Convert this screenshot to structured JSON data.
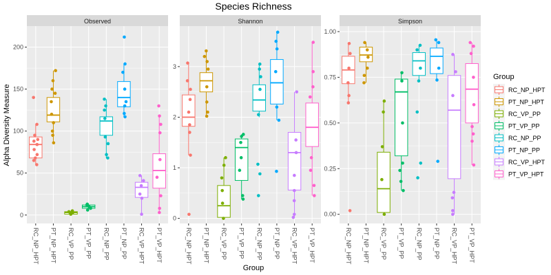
{
  "chart_data": {
    "type": "boxplot",
    "title": "Species Richness",
    "xlabel": "Group",
    "ylabel": "Alpha Diversity Measure",
    "legend": {
      "title": "Group",
      "placement": "right",
      "entries": [
        {
          "name": "RC_NP_HPT",
          "color": "#F8766D"
        },
        {
          "name": "PT_NP_HPT",
          "color": "#CD9600"
        },
        {
          "name": "RC_VP_PP",
          "color": "#7CAE00"
        },
        {
          "name": "PT_VP_PP",
          "color": "#00BE67"
        },
        {
          "name": "RC_NP_PP",
          "color": "#00BFC4"
        },
        {
          "name": "PT_NP_PP",
          "color": "#00A9FF"
        },
        {
          "name": "RC_VP_HPT",
          "color": "#C77CFF"
        },
        {
          "name": "PT_VP_HPT",
          "color": "#FF61CC"
        }
      ]
    },
    "categories": [
      "RC_NP_HPT",
      "PT_NP_HPT",
      "RC_VP_PP",
      "PT_VP_PP",
      "RC_NP_PP",
      "PT_NP_PP",
      "RC_VP_HPT",
      "PT_VP_HPT"
    ],
    "grid": true,
    "panels": [
      {
        "name": "Observed",
        "ylim": [
          -10,
          225
        ],
        "yticks": [
          0,
          50,
          100,
          150,
          200
        ],
        "boxes": [
          {
            "q1": 68,
            "median": 84,
            "q3": 93,
            "min": 60,
            "max": 108,
            "points": [
              60,
              65,
              68,
              72,
              78,
              84,
              88,
              90,
              95,
              108,
              140
            ]
          },
          {
            "q1": 111,
            "median": 119,
            "q3": 140,
            "min": 86,
            "max": 172,
            "points": [
              86,
              95,
              100,
              110,
              120,
              135,
              145,
              150,
              160,
              172
            ]
          },
          {
            "q1": 1,
            "median": 3,
            "q3": 4,
            "min": 1,
            "max": 5,
            "points": [
              1,
              2,
              3,
              4,
              5
            ]
          },
          {
            "q1": 8,
            "median": 10,
            "q3": 12,
            "min": 6,
            "max": 13,
            "points": [
              6,
              8,
              10,
              12,
              13
            ]
          },
          {
            "q1": 95,
            "median": 112,
            "q3": 117,
            "min": 68,
            "max": 138,
            "points": [
              68,
              72,
              85,
              93,
              115,
              125,
              130,
              138
            ]
          },
          {
            "q1": 129,
            "median": 140,
            "q3": 159,
            "min": 117,
            "max": 180,
            "points": [
              117,
              121,
              130,
              135,
              150,
              170,
              180,
              212
            ]
          },
          {
            "q1": 21,
            "median": 33,
            "q3": 39,
            "min": 1,
            "max": 47,
            "points": [
              1,
              20,
              25,
              35,
              41,
              47
            ]
          },
          {
            "q1": 32,
            "median": 53,
            "q3": 73,
            "min": 3,
            "max": 118,
            "points": [
              3,
              8,
              23,
              45,
              66,
              98,
              108,
              118,
              130
            ]
          }
        ]
      },
      {
        "name": "Shannon",
        "ylim": [
          -0.1,
          3.8
        ],
        "yticks": [
          0,
          1,
          2,
          3
        ],
        "boxes": [
          {
            "q1": 1.82,
            "median": 2.0,
            "q3": 2.44,
            "min": 1.25,
            "max": 3.07,
            "points": [
              0.08,
              1.25,
              1.7,
              1.85,
              2.1,
              2.35,
              2.55,
              2.72,
              3.07
            ]
          },
          {
            "q1": 2.5,
            "median": 2.72,
            "q3": 2.88,
            "min": 2.02,
            "max": 3.31,
            "points": [
              2.02,
              2.1,
              2.3,
              2.6,
              2.95,
              3.1,
              3.2,
              3.31
            ]
          },
          {
            "q1": 0.02,
            "median": 0.25,
            "q3": 0.65,
            "min": 0.0,
            "max": 1.2,
            "points": [
              0.0,
              0.3,
              0.55,
              0.8,
              1.05,
              1.2
            ]
          },
          {
            "q1": 0.75,
            "median": 1.4,
            "q3": 1.57,
            "min": 0.38,
            "max": 1.66,
            "points": [
              0.38,
              0.45,
              0.95,
              1.2,
              1.5,
              1.62,
              1.66
            ]
          },
          {
            "q1": 2.12,
            "median": 2.34,
            "q3": 2.64,
            "min": 2.0,
            "max": 3.05,
            "points": [
              0.45,
              0.88,
              1.07,
              2.05,
              2.55,
              2.8,
              2.95,
              3.05
            ]
          },
          {
            "q1": 2.26,
            "median": 2.68,
            "q3": 3.14,
            "min": 1.94,
            "max": 3.68,
            "points": [
              0.93,
              1.94,
              2.2,
              2.9,
              3.35,
              3.5,
              3.68
            ]
          },
          {
            "q1": 0.56,
            "median": 1.3,
            "q3": 1.7,
            "min": 0.02,
            "max": 2.5,
            "points": [
              0.02,
              0.08,
              0.35,
              0.55,
              0.85,
              1.3,
              1.55,
              2.5
            ]
          },
          {
            "q1": 1.42,
            "median": 1.8,
            "q3": 2.28,
            "min": 0.45,
            "max": 3.48,
            "points": [
              0.45,
              0.65,
              0.95,
              1.2,
              2.4,
              2.6,
              2.9,
              3.48
            ]
          }
        ]
      },
      {
        "name": "Simpson",
        "ylim": [
          -0.05,
          1.03
        ],
        "yticks": [
          0.0,
          0.25,
          0.5,
          0.75,
          1.0
        ],
        "ytick_labels": [
          "0.00",
          "0.25",
          "0.50",
          "0.75",
          "1.00"
        ],
        "boxes": [
          {
            "q1": 0.715,
            "median": 0.79,
            "q3": 0.865,
            "min": 0.61,
            "max": 0.935,
            "points": [
              0.02,
              0.61,
              0.65,
              0.72,
              0.8,
              0.88,
              0.935
            ]
          },
          {
            "q1": 0.835,
            "median": 0.872,
            "q3": 0.915,
            "min": 0.72,
            "max": 0.94,
            "points": [
              0.72,
              0.76,
              0.8,
              0.86,
              0.9,
              0.94
            ]
          },
          {
            "q1": 0.01,
            "median": 0.14,
            "q3": 0.34,
            "min": 0.0,
            "max": 0.62,
            "points": [
              0.0,
              0.19,
              0.37,
              0.56,
              0.62
            ]
          },
          {
            "q1": 0.32,
            "median": 0.67,
            "q3": 0.74,
            "min": 0.13,
            "max": 0.775,
            "points": [
              0.13,
              0.18,
              0.24,
              0.28,
              0.5,
              0.73,
              0.775
            ]
          },
          {
            "q1": 0.76,
            "median": 0.84,
            "q3": 0.885,
            "min": 0.73,
            "max": 0.925,
            "points": [
              0.2,
              0.28,
              0.56,
              0.73,
              0.8,
              0.9,
              0.925
            ]
          },
          {
            "q1": 0.77,
            "median": 0.865,
            "q3": 0.91,
            "min": 0.735,
            "max": 0.955,
            "points": [
              0.29,
              0.735,
              0.8,
              0.94,
              0.955
            ]
          },
          {
            "q1": 0.195,
            "median": 0.57,
            "q3": 0.76,
            "min": 0.0,
            "max": 0.875,
            "points": [
              0.0,
              0.02,
              0.09,
              0.12,
              0.65,
              0.78,
              0.875
            ]
          },
          {
            "q1": 0.5,
            "median": 0.685,
            "q3": 0.825,
            "min": 0.27,
            "max": 0.94,
            "points": [
              0.27,
              0.4,
              0.44,
              0.48,
              0.6,
              0.75,
              0.88,
              0.92,
              0.94
            ]
          }
        ]
      }
    ]
  }
}
